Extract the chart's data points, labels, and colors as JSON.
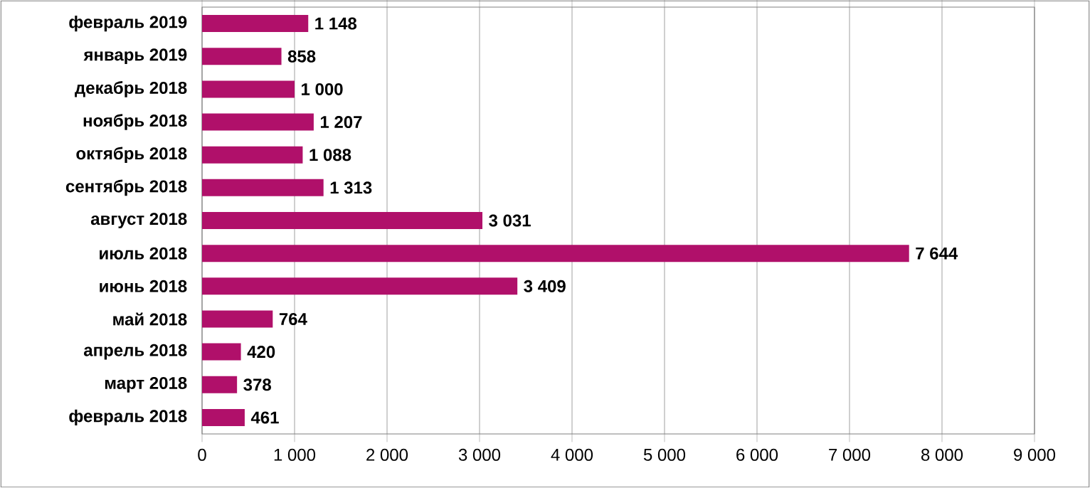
{
  "chart_data": {
    "type": "bar",
    "orientation": "horizontal",
    "categories": [
      "февраль 2019",
      "январь 2019",
      "декабрь 2018",
      "ноябрь 2018",
      "октябрь 2018",
      "сентябрь 2018",
      "август 2018",
      "июль 2018",
      "июнь 2018",
      "май 2018",
      "апрель 2018",
      "март 2018",
      "февраль 2018"
    ],
    "values": [
      1148,
      858,
      1000,
      1207,
      1088,
      1313,
      3031,
      7644,
      3409,
      764,
      420,
      378,
      461
    ],
    "value_labels": [
      "1 148",
      "858",
      "1 000",
      "1 207",
      "1 088",
      "1 313",
      "3 031",
      "7 644",
      "3 409",
      "764",
      "420",
      "378",
      "461"
    ],
    "color": "#b0106a",
    "xlim": [
      0,
      9000
    ],
    "xticks": [
      0,
      {
        "value": 1000,
        "label": "1 000"
      },
      {
        "value": 2000,
        "label": "2 000"
      },
      {
        "value": 3000,
        "label": "3 000"
      },
      {
        "value": 4000,
        "label": "4 000"
      },
      {
        "value": 5000,
        "label": "5 000"
      },
      {
        "value": 6000,
        "label": "6 000"
      },
      {
        "value": 7000,
        "label": "7 000"
      },
      {
        "value": 8000,
        "label": "8 000"
      },
      {
        "value": 9000,
        "label": "9 000"
      }
    ],
    "grid": "x"
  }
}
